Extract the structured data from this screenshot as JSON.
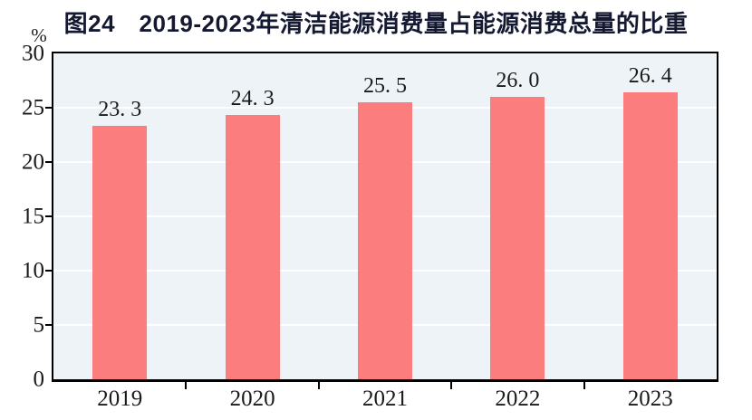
{
  "chart_data": {
    "type": "bar",
    "title": "图24　2019-2023年清洁能源消费量占能源消费总量的比重",
    "ylabel": "%",
    "xlabel": "",
    "categories": [
      "2019",
      "2020",
      "2021",
      "2022",
      "2023"
    ],
    "values": [
      23.3,
      24.3,
      25.5,
      26.0,
      26.4
    ],
    "value_labels": [
      "23. 3",
      "24. 3",
      "25. 5",
      "26. 0",
      "26. 4"
    ],
    "ylim": [
      0,
      30
    ],
    "yticks": [
      0,
      5,
      10,
      15,
      20,
      25,
      30
    ],
    "grid": true,
    "legend": "none",
    "colors": {
      "bar": "#FC7D7D",
      "plot_background": "#EDF3F6",
      "gridline": "#FFFFFF",
      "axis": "#000000",
      "title_text": "#141931",
      "tick_text": "#1A1A1A"
    }
  }
}
